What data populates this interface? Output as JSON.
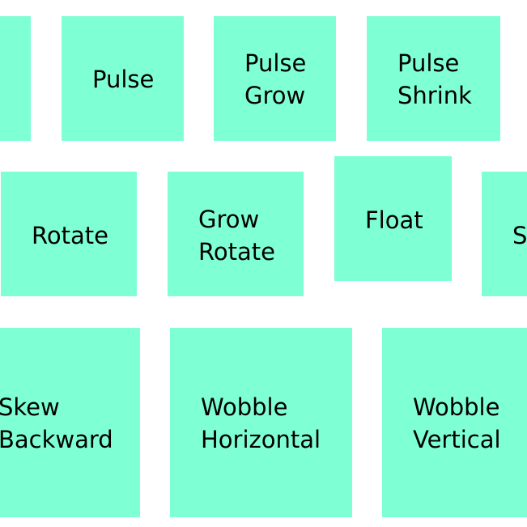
{
  "colors": {
    "tile_background": "#7fffd4",
    "page_background": "#ffffff",
    "text": "#000000"
  },
  "rows": [
    {
      "tiles": [
        {
          "name": "partial",
          "lines": [
            ""
          ]
        },
        {
          "name": "pulse",
          "lines": [
            "Pulse"
          ]
        },
        {
          "name": "pulse-grow",
          "lines": [
            "Pulse",
            "Grow"
          ]
        },
        {
          "name": "pulse-shrink",
          "lines": [
            "Pulse",
            "Shrink"
          ]
        }
      ]
    },
    {
      "tiles": [
        {
          "name": "rotate",
          "lines": [
            "Rotate"
          ]
        },
        {
          "name": "grow-rotate",
          "lines": [
            "Grow",
            "Rotate"
          ]
        },
        {
          "name": "float",
          "lines": [
            "Float"
          ]
        },
        {
          "name": "partial",
          "lines": [
            "S"
          ]
        }
      ]
    },
    {
      "tiles": [
        {
          "name": "skew-backward",
          "lines": [
            "Skew",
            "Backward"
          ]
        },
        {
          "name": "wobble-horizontal",
          "lines": [
            "Wobble",
            "Horizontal"
          ]
        },
        {
          "name": "wobble-vertical",
          "lines": [
            "Wobble",
            "Vertical"
          ]
        }
      ]
    }
  ]
}
